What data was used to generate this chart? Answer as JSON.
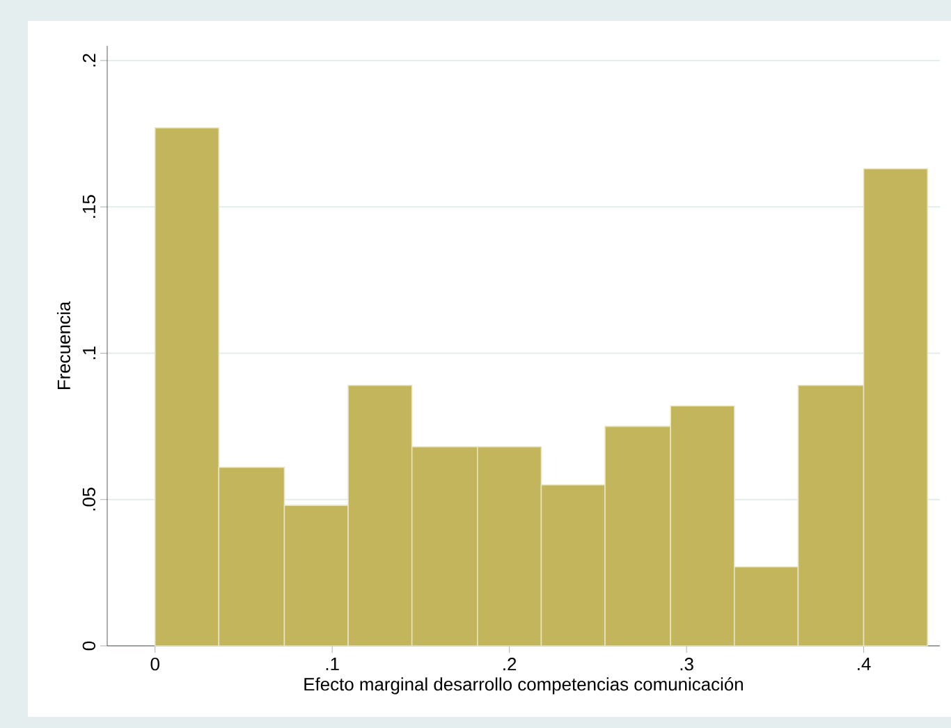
{
  "chart_data": {
    "type": "histogram",
    "xlabel": "Efecto marginal desarrollo competencias comunicación",
    "ylabel": "Frecuencia",
    "bins": [
      0,
      0.036,
      0.073,
      0.109,
      0.145,
      0.182,
      0.218,
      0.254,
      0.291,
      0.327,
      0.363,
      0.4,
      0.436
    ],
    "values": [
      0.177,
      0.061,
      0.048,
      0.089,
      0.068,
      0.068,
      0.055,
      0.075,
      0.082,
      0.027,
      0.089,
      0.163
    ],
    "color": "#c2b55b",
    "xlim": [
      -0.027,
      0.443
    ],
    "ylim": [
      0,
      0.205
    ],
    "xticks": [
      0,
      {
        "value": 0.1,
        "label": ".1"
      },
      {
        "value": 0.2,
        "label": ".2"
      },
      {
        "value": 0.3,
        "label": ".3"
      },
      {
        "value": 0.4,
        "label": ".4"
      }
    ],
    "yticks": [
      0,
      {
        "value": 0.05,
        "label": ".05"
      },
      {
        "value": 0.1,
        "label": ".1"
      },
      {
        "value": 0.15,
        "label": ".15"
      },
      {
        "value": 0.2,
        "label": ".2"
      }
    ],
    "grid": "y"
  }
}
